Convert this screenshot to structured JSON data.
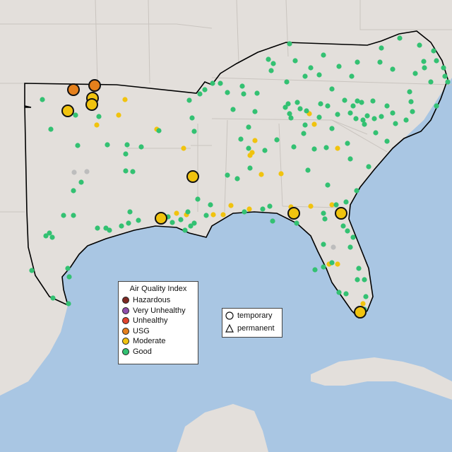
{
  "legend": {
    "title": "Air Quality Index",
    "categories": [
      {
        "label": "Hazardous",
        "color": "#7e2a24"
      },
      {
        "label": "Very Unhealthy",
        "color": "#8f4fad"
      },
      {
        "label": "Unhealthy",
        "color": "#e0442f"
      },
      {
        "label": "USG",
        "color": "#e5801c"
      },
      {
        "label": "Moderate",
        "color": "#f1c30e"
      },
      {
        "label": "Good",
        "color": "#33c172"
      }
    ],
    "monitor_types": [
      {
        "label": "temporary",
        "shape": "circle-icon"
      },
      {
        "label": "permanent",
        "shape": "triangle-icon"
      }
    ]
  },
  "colors": {
    "land": "#e3dfdb",
    "water": "#a9c6e3",
    "state_border": "#c9c4bf",
    "region_outline": "#000000",
    "inactive_monitor": "#bdbdbd"
  }
}
